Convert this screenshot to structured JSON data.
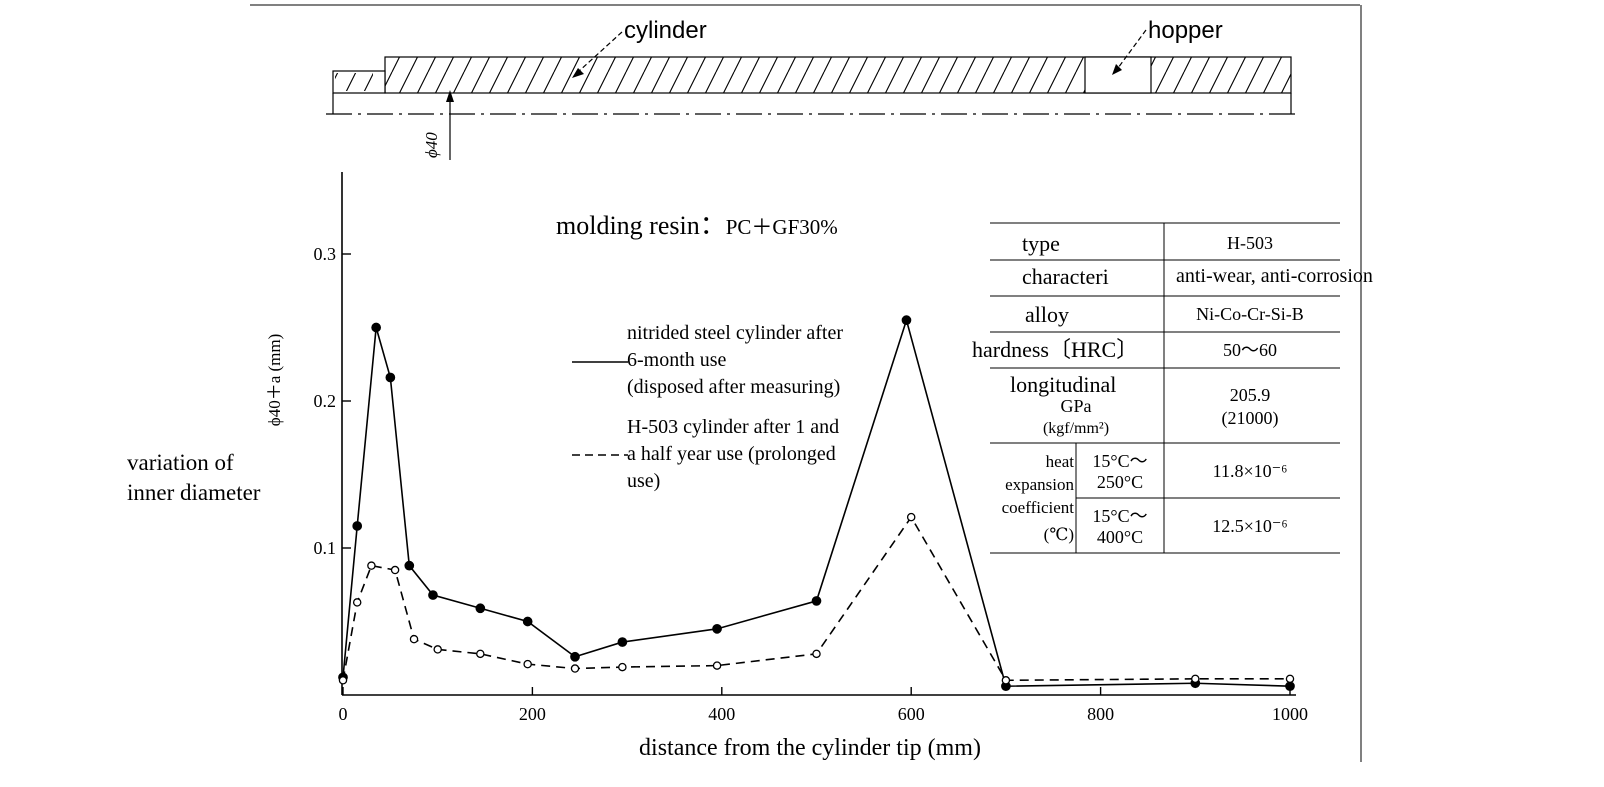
{
  "diagram": {
    "cylinder_label": "cylinder",
    "hopper_label": "hopper",
    "diameter_label": "ϕ40"
  },
  "annotation": {
    "molding_prefix": "molding resin：",
    "molding_value": "PC＋GF30%",
    "variation_line1": "variation of",
    "variation_line2": "inner diameter"
  },
  "legend": {
    "series1_lines": [
      "nitrided steel cylinder after",
      "6-month use",
      "(disposed after measuring)"
    ],
    "series2_lines": [
      "H-503 cylinder after 1 and",
      "a half year use (prolonged",
      "use)"
    ]
  },
  "spec_table": {
    "rows": [
      {
        "label": "type",
        "value": "H-503"
      },
      {
        "label": "characteri",
        "value": "anti-wear, anti-corrosion"
      },
      {
        "label": "alloy",
        "value": "Ni-Co-Cr-Si-B"
      },
      {
        "label": "hardness〔HRC〕",
        "value": "50～60"
      },
      {
        "label": "longitudinal",
        "label2": "GPa",
        "label3": "(kgf/mm²)",
        "value": "205.9",
        "value2": "(21000)"
      }
    ],
    "heat_label": [
      "heat",
      "expansion",
      "coefficient",
      "(℃)"
    ],
    "heat_rows": [
      {
        "range": "15°C～",
        "range2": "250°C",
        "value": "11.8×10⁻⁶"
      },
      {
        "range": "15°C～",
        "range2": "400°C",
        "value": "12.5×10⁻⁶"
      }
    ]
  },
  "chart_data": {
    "type": "line",
    "xlabel": "distance from the cylinder tip (mm)",
    "ylabel": "ϕ40＋a (mm)",
    "xlim": [
      0,
      1000
    ],
    "ylim": [
      0,
      0.35
    ],
    "xticks": [
      0,
      200,
      400,
      600,
      800,
      1000
    ],
    "yticks": [
      0.1,
      0.2,
      0.3
    ],
    "series": [
      {
        "style": "solid-filled",
        "x": [
          0,
          15,
          35,
          50,
          70,
          95,
          145,
          195,
          245,
          295,
          395,
          500,
          595,
          700,
          900,
          1000
        ],
        "y": [
          0.012,
          0.115,
          0.25,
          0.216,
          0.088,
          0.068,
          0.059,
          0.05,
          0.026,
          0.036,
          0.045,
          0.064,
          0.255,
          0.006,
          0.008,
          0.006
        ]
      },
      {
        "style": "dashed-open",
        "x": [
          0,
          15,
          30,
          55,
          75,
          100,
          145,
          195,
          245,
          295,
          395,
          500,
          600,
          700,
          900,
          1000
        ],
        "y": [
          0.01,
          0.063,
          0.088,
          0.085,
          0.038,
          0.031,
          0.028,
          0.021,
          0.018,
          0.019,
          0.02,
          0.028,
          0.121,
          0.01,
          0.011,
          0.011
        ]
      }
    ]
  }
}
